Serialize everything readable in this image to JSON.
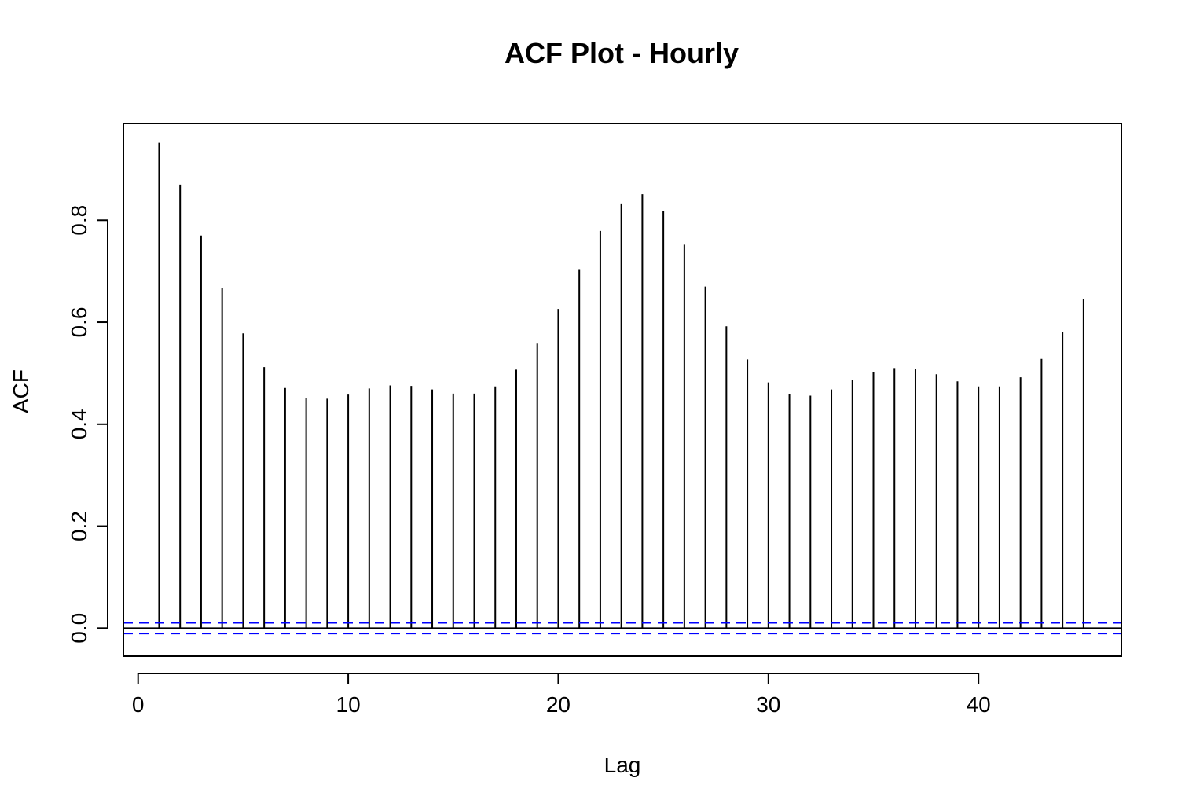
{
  "chart_data": {
    "type": "bar",
    "title": "ACF Plot - Hourly",
    "xlabel": "Lag",
    "ylabel": "ACF",
    "xlim": [
      -0.7,
      46.8
    ],
    "ylim": [
      -0.055,
      0.99
    ],
    "x_ticks": [
      0,
      10,
      20,
      30,
      40
    ],
    "x_tick_labels": [
      "0",
      "10",
      "20",
      "30",
      "40"
    ],
    "y_ticks": [
      0.0,
      0.2,
      0.4,
      0.6,
      0.8
    ],
    "y_tick_labels": [
      "0.0",
      "0.2",
      "0.4",
      "0.6",
      "0.8"
    ],
    "lags": [
      1,
      2,
      3,
      4,
      5,
      6,
      7,
      8,
      9,
      10,
      11,
      12,
      13,
      14,
      15,
      16,
      17,
      18,
      19,
      20,
      21,
      22,
      23,
      24,
      25,
      26,
      27,
      28,
      29,
      30,
      31,
      32,
      33,
      34,
      35,
      36,
      37,
      38,
      39,
      40,
      41,
      42,
      43,
      44,
      45
    ],
    "values": [
      0.952,
      0.87,
      0.77,
      0.667,
      0.578,
      0.512,
      0.471,
      0.451,
      0.45,
      0.458,
      0.47,
      0.476,
      0.475,
      0.468,
      0.46,
      0.46,
      0.474,
      0.507,
      0.558,
      0.626,
      0.704,
      0.779,
      0.833,
      0.851,
      0.818,
      0.752,
      0.67,
      0.592,
      0.527,
      0.482,
      0.459,
      0.456,
      0.468,
      0.486,
      0.502,
      0.51,
      0.508,
      0.498,
      0.484,
      0.474,
      0.474,
      0.492,
      0.528,
      0.581,
      0.645
    ],
    "confidence_bound": 0.0105,
    "zero_line": 0,
    "grid": false,
    "legend": "none",
    "colors": {
      "bars": "#000000",
      "confidence": "#0000ff",
      "frame": "#000000"
    }
  }
}
